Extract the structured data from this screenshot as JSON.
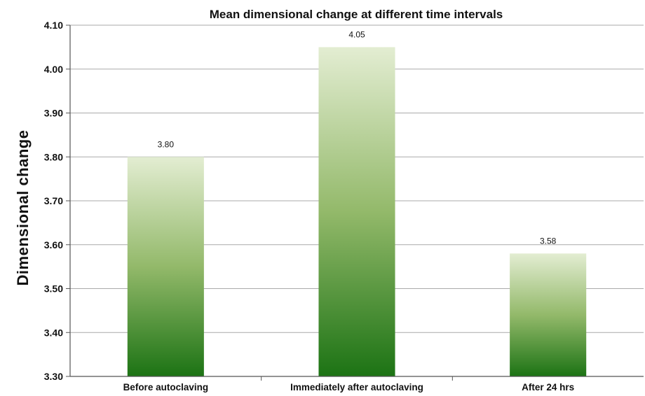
{
  "chart_data": {
    "type": "bar",
    "title": "Mean dimensional change at different time intervals",
    "xlabel": "",
    "ylabel": "Dimensional change",
    "categories": [
      "Before autoclaving",
      "Immediately after autoclaving",
      "After 24 hrs"
    ],
    "values": [
      3.8,
      4.05,
      3.58
    ],
    "data_labels": [
      "3.80",
      "4.05",
      "3.58"
    ],
    "ylim": [
      3.3,
      4.1
    ],
    "yticks": [
      "3.30",
      "3.40",
      "3.50",
      "3.60",
      "3.70",
      "3.80",
      "3.90",
      "4.00",
      "4.10"
    ],
    "grid": true,
    "legend": "none",
    "colors": {
      "bar_top": "#e3edd2",
      "bar_bottom": "#1c7314",
      "gridline": "#a9a9a9"
    }
  }
}
